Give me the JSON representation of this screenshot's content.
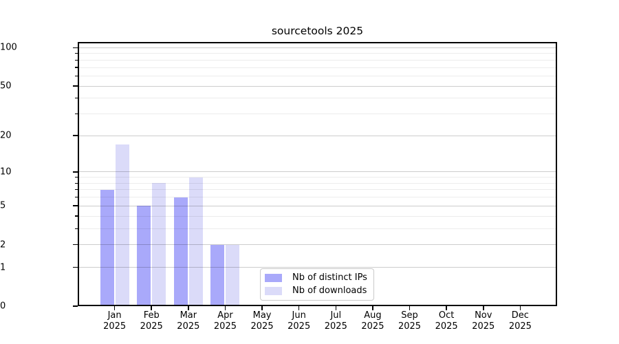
{
  "chart_data": {
    "type": "bar",
    "title": "sourcetools 2025",
    "x_labels": [
      {
        "month": "Jan",
        "year": "2025"
      },
      {
        "month": "Feb",
        "year": "2025"
      },
      {
        "month": "Mar",
        "year": "2025"
      },
      {
        "month": "Apr",
        "year": "2025"
      },
      {
        "month": "May",
        "year": "2025"
      },
      {
        "month": "Jun",
        "year": "2025"
      },
      {
        "month": "Jul",
        "year": "2025"
      },
      {
        "month": "Aug",
        "year": "2025"
      },
      {
        "month": "Sep",
        "year": "2025"
      },
      {
        "month": "Oct",
        "year": "2025"
      },
      {
        "month": "Nov",
        "year": "2025"
      },
      {
        "month": "Dec",
        "year": "2025"
      }
    ],
    "series": [
      {
        "name": "Nb of distinct IPs",
        "color": "#a9a9fa",
        "values": [
          7,
          5,
          6,
          2,
          0,
          0,
          0,
          0,
          0,
          0,
          0,
          0
        ]
      },
      {
        "name": "Nb of downloads",
        "color": "#dbdbf9",
        "values": [
          17,
          8,
          9,
          2,
          0,
          0,
          0,
          0,
          0,
          0,
          0,
          0
        ]
      }
    ],
    "y_axis": {
      "scale": "log10(value+1)",
      "min": 0,
      "max": 111,
      "major_ticks": [
        0,
        1,
        2,
        5,
        10,
        20,
        50,
        100
      ],
      "minor_ticks": [
        3,
        4,
        6,
        7,
        8,
        9,
        30,
        40,
        60,
        70,
        80,
        90
      ]
    },
    "grid": true,
    "legend": {
      "position": "lower center"
    }
  },
  "colors": {
    "background": "#ffffff",
    "spine": "#000000",
    "major_grid": "rgba(0,0,0,0.20)",
    "minor_grid": "rgba(0,0,0,0.075)",
    "legend_border": "#c9c9c9"
  }
}
